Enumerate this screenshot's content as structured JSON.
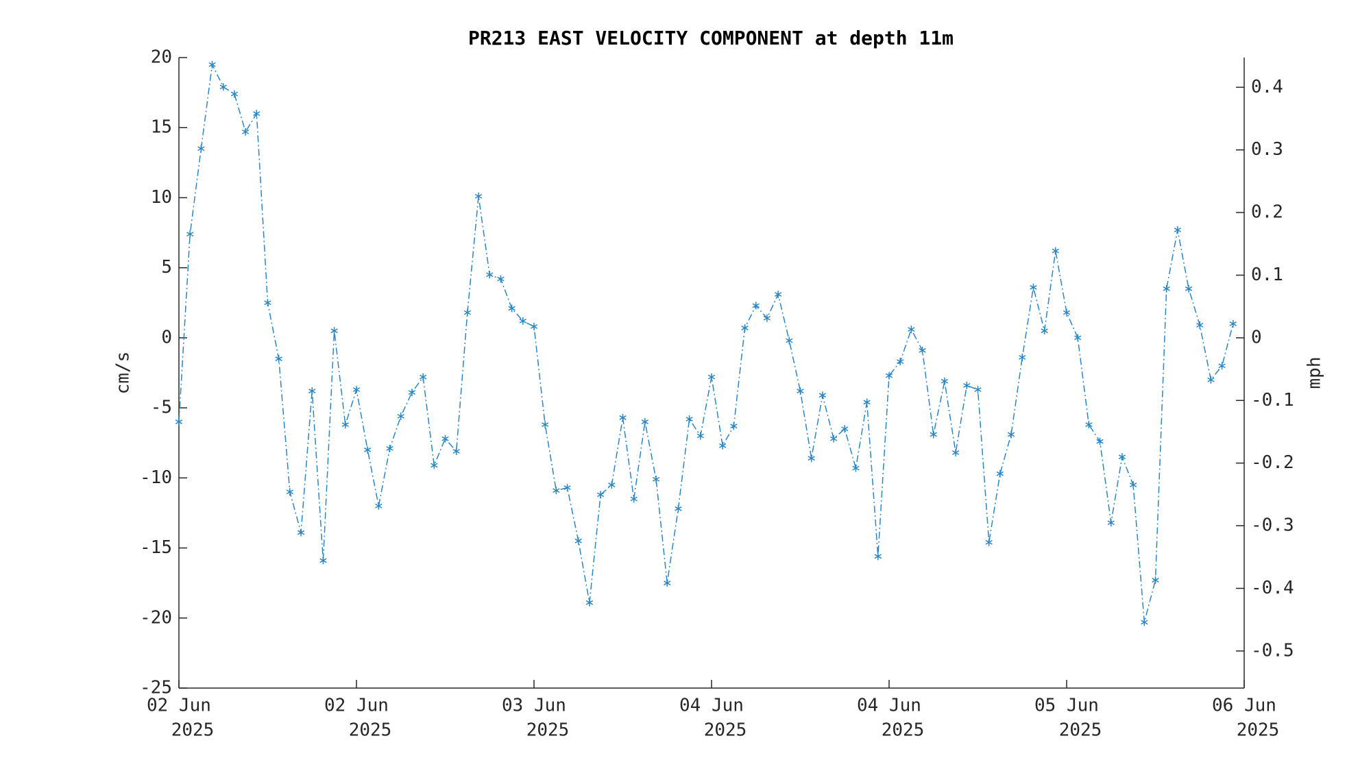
{
  "chart_data": {
    "type": "line",
    "title": "PR213 EAST VELOCITY COMPONENT at depth 11m",
    "ylabel": "cm/s",
    "y2label": "mph",
    "x": [
      "2025-06-02T00:00",
      "2025-06-02T01:00",
      "2025-06-02T02:00",
      "2025-06-02T03:00",
      "2025-06-02T04:00",
      "2025-06-02T05:00",
      "2025-06-02T06:00",
      "2025-06-02T07:00",
      "2025-06-02T08:00",
      "2025-06-02T09:00",
      "2025-06-02T10:00",
      "2025-06-02T11:00",
      "2025-06-02T12:00",
      "2025-06-02T13:00",
      "2025-06-02T14:00",
      "2025-06-02T15:00",
      "2025-06-02T16:00",
      "2025-06-02T17:00",
      "2025-06-02T18:00",
      "2025-06-02T19:00",
      "2025-06-02T20:00",
      "2025-06-02T21:00",
      "2025-06-02T22:00",
      "2025-06-02T23:00",
      "2025-06-03T00:00",
      "2025-06-03T01:00",
      "2025-06-03T02:00",
      "2025-06-03T03:00",
      "2025-06-03T04:00",
      "2025-06-03T05:00",
      "2025-06-03T06:00",
      "2025-06-03T07:00",
      "2025-06-03T08:00",
      "2025-06-03T09:00",
      "2025-06-03T10:00",
      "2025-06-03T11:00",
      "2025-06-03T12:00",
      "2025-06-03T13:00",
      "2025-06-03T14:00",
      "2025-06-03T15:00",
      "2025-06-03T16:00",
      "2025-06-03T17:00",
      "2025-06-03T18:00",
      "2025-06-03T19:00",
      "2025-06-03T20:00",
      "2025-06-03T21:00",
      "2025-06-03T22:00",
      "2025-06-03T23:00",
      "2025-06-04T00:00",
      "2025-06-04T01:00",
      "2025-06-04T02:00",
      "2025-06-04T03:00",
      "2025-06-04T04:00",
      "2025-06-04T05:00",
      "2025-06-04T06:00",
      "2025-06-04T07:00",
      "2025-06-04T08:00",
      "2025-06-04T09:00",
      "2025-06-04T10:00",
      "2025-06-04T11:00",
      "2025-06-04T12:00",
      "2025-06-04T13:00",
      "2025-06-04T14:00",
      "2025-06-04T15:00",
      "2025-06-04T16:00",
      "2025-06-04T17:00",
      "2025-06-04T18:00",
      "2025-06-04T19:00",
      "2025-06-04T20:00",
      "2025-06-04T21:00",
      "2025-06-04T22:00",
      "2025-06-04T23:00",
      "2025-06-05T00:00",
      "2025-06-05T01:00",
      "2025-06-05T02:00",
      "2025-06-05T03:00",
      "2025-06-05T04:00",
      "2025-06-05T05:00",
      "2025-06-05T06:00",
      "2025-06-05T07:00",
      "2025-06-05T08:00",
      "2025-06-05T09:00",
      "2025-06-05T10:00",
      "2025-06-05T11:00",
      "2025-06-05T12:00",
      "2025-06-05T13:00",
      "2025-06-05T14:00",
      "2025-06-05T15:00",
      "2025-06-05T16:00",
      "2025-06-05T17:00",
      "2025-06-05T18:00",
      "2025-06-05T19:00",
      "2025-06-05T20:00",
      "2025-06-05T21:00",
      "2025-06-05T22:00",
      "2025-06-05T23:00"
    ],
    "series": [
      {
        "color": "#2a86c4",
        "values": [
          -6.0,
          7.4,
          13.5,
          19.5,
          17.9,
          17.4,
          14.7,
          16.0,
          2.5,
          -1.5,
          -11.0,
          -13.9,
          -3.8,
          -15.9,
          0.5,
          -6.2,
          -3.7,
          -8.0,
          -12.0,
          -7.9,
          -5.6,
          -3.9,
          -2.8,
          -9.1,
          -7.2,
          -8.1,
          1.8,
          10.1,
          4.5,
          4.2,
          2.1,
          1.2,
          0.8,
          -6.2,
          -10.9,
          -10.7,
          -14.5,
          -18.9,
          -11.2,
          -10.5,
          -5.7,
          -11.5,
          -6.0,
          -10.1,
          -17.5,
          -12.2,
          -5.8,
          -7.0,
          -2.8,
          -7.7,
          -6.3,
          0.7,
          2.3,
          1.4,
          3.1,
          -0.2,
          -3.8,
          -8.6,
          -4.1,
          -7.2,
          -6.5,
          -9.3,
          -4.6,
          -15.6,
          -2.7,
          -1.7,
          0.6,
          -0.9,
          -6.9,
          -3.1,
          -8.2,
          -3.4,
          -3.7,
          -14.6,
          -9.7,
          -6.9,
          -1.4,
          3.6,
          0.5,
          6.2,
          1.8,
          0.0,
          -6.2,
          -7.4,
          -13.2,
          -8.5,
          -10.5,
          -20.3,
          -17.3,
          3.5,
          7.7,
          3.5,
          0.9,
          -3.0,
          -2.0,
          1.0
        ]
      }
    ],
    "xlim": [
      "2025-06-02T00:00",
      "2025-06-06T00:00"
    ],
    "xticks": [
      {
        "value": "2025-06-02T00:00",
        "label": [
          "02 Jun",
          "2025"
        ]
      },
      {
        "value": "2025-06-02T16:00",
        "label": [
          "02 Jun",
          "2025"
        ]
      },
      {
        "value": "2025-06-03T08:00",
        "label": [
          "03 Jun",
          "2025"
        ]
      },
      {
        "value": "2025-06-04T00:00",
        "label": [
          "04 Jun",
          "2025"
        ]
      },
      {
        "value": "2025-06-04T16:00",
        "label": [
          "04 Jun",
          "2025"
        ]
      },
      {
        "value": "2025-06-05T08:00",
        "label": [
          "05 Jun",
          "2025"
        ]
      },
      {
        "value": "2025-06-06T00:00",
        "label": [
          "06 Jun",
          "2025"
        ]
      }
    ],
    "ylim": [
      -25,
      20
    ],
    "yticks": [
      -25,
      -20,
      -15,
      -10,
      -5,
      0,
      5,
      10,
      15,
      20
    ],
    "y2lim": [
      -0.5592,
      0.4474
    ],
    "y2ticks": [
      -0.5,
      -0.4,
      -0.3,
      -0.2,
      -0.1,
      0,
      0.1,
      0.2,
      0.3,
      0.4
    ],
    "grid": false
  }
}
